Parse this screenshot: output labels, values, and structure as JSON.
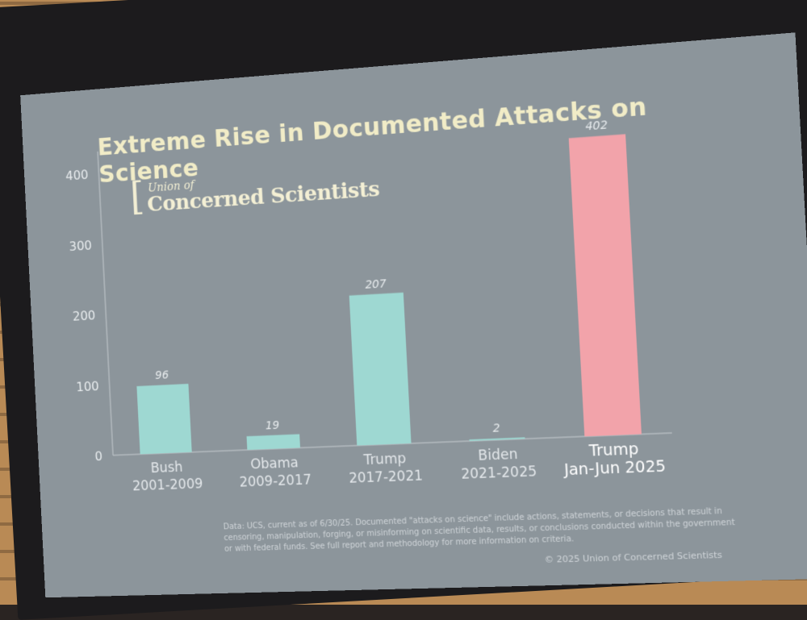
{
  "slide": {
    "title": "Extreme Rise in Documented Attacks on Science",
    "logo_line1": "Union of",
    "logo_line2": "Concerned Scientists",
    "footnote": "Data: UCS, current as of 6/30/25. Documented \"attacks on science\" include actions, statements, or decisions that result in censoring, manipulation, forging, or misinforming on scientific data, results, or conclusions conducted within the government or with federal funds. See full report and methodology for more information on criteria.",
    "copyright": "© 2025 Union of Concerned Scientists"
  },
  "chart_data": {
    "type": "bar",
    "categories": [
      [
        "Bush",
        "2001-2009"
      ],
      [
        "Obama",
        "2009-2017"
      ],
      [
        "Trump",
        "2017-2021"
      ],
      [
        "Biden",
        "2021-2025"
      ],
      [
        "Trump",
        "Jan-Jun 2025"
      ]
    ],
    "values": [
      96,
      19,
      207,
      2,
      402
    ],
    "data_labels": [
      "96",
      "19",
      "207",
      "2",
      "402"
    ],
    "bar_colors": [
      "#9ed8d2",
      "#9ed8d2",
      "#9ed8d2",
      "#9ed8d2",
      "#f2a3aa"
    ],
    "yticks": [
      0,
      100,
      200,
      300,
      400
    ],
    "ylim": [
      0,
      420
    ],
    "title": "Extreme Rise in Documented Attacks on Science",
    "xlabel": "",
    "ylabel": ""
  }
}
